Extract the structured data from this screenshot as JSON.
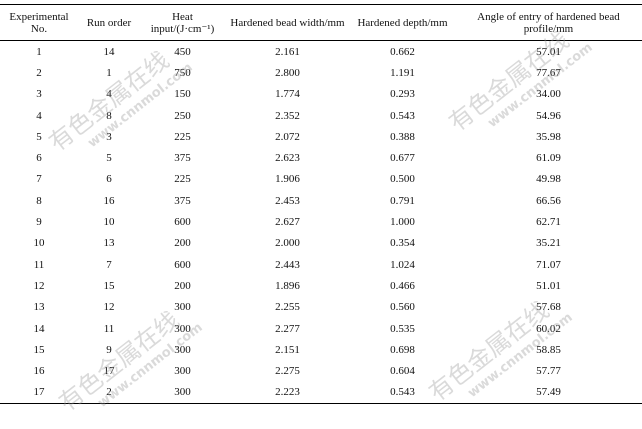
{
  "table": {
    "headers": [
      "Experimental No.",
      "Run order",
      "Heat input/(J·cm⁻¹)",
      "Hardened bead width/mm",
      "Hardened depth/mm",
      "Angle of entry of hardened bead profile/mm"
    ],
    "rows": [
      [
        "1",
        "14",
        "450",
        "2.161",
        "0.662",
        "57.01"
      ],
      [
        "2",
        "1",
        "750",
        "2.800",
        "1.191",
        "77.67"
      ],
      [
        "3",
        "4",
        "150",
        "1.774",
        "0.293",
        "34.00"
      ],
      [
        "4",
        "8",
        "250",
        "2.352",
        "0.543",
        "54.96"
      ],
      [
        "5",
        "3",
        "225",
        "2.072",
        "0.388",
        "35.98"
      ],
      [
        "6",
        "5",
        "375",
        "2.623",
        "0.677",
        "61.09"
      ],
      [
        "7",
        "6",
        "225",
        "1.906",
        "0.500",
        "49.98"
      ],
      [
        "8",
        "16",
        "375",
        "2.453",
        "0.791",
        "66.56"
      ],
      [
        "9",
        "10",
        "600",
        "2.627",
        "1.000",
        "62.71"
      ],
      [
        "10",
        "13",
        "200",
        "2.000",
        "0.354",
        "35.21"
      ],
      [
        "11",
        "7",
        "600",
        "2.443",
        "1.024",
        "71.07"
      ],
      [
        "12",
        "15",
        "200",
        "1.896",
        "0.466",
        "51.01"
      ],
      [
        "13",
        "12",
        "300",
        "2.255",
        "0.560",
        "57.68"
      ],
      [
        "14",
        "11",
        "300",
        "2.277",
        "0.535",
        "60.02"
      ],
      [
        "15",
        "9",
        "300",
        "2.151",
        "0.698",
        "58.85"
      ],
      [
        "16",
        "17",
        "300",
        "2.275",
        "0.604",
        "57.77"
      ],
      [
        "17",
        "2",
        "300",
        "2.223",
        "0.543",
        "57.49"
      ]
    ]
  },
  "watermark": {
    "text": "有色金属在线",
    "url": "www.cnnmol.com"
  }
}
